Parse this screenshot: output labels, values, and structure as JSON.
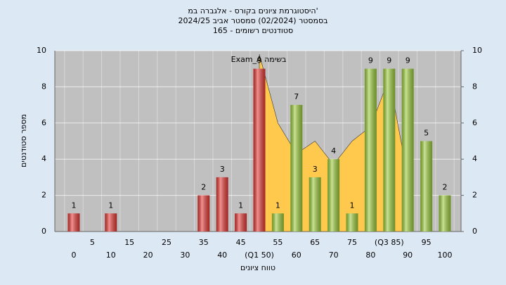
{
  "chart_data": {
    "type": "bar",
    "title": [
      "היסטוגרמת ציונים בקורס - אלגברה במ'",
      "בסמסטר (02/2024) סמסטר אביב 2024/25",
      "סטודנטים רשומים - 165"
    ],
    "x_label": "טווח ציונים",
    "y_label": "מספר סטודנטים",
    "categories": [
      "0",
      "5",
      "10",
      "15",
      "20",
      "25",
      "30",
      "35",
      "40",
      "45",
      "(Q1 50)",
      "55",
      "60",
      "65",
      "70",
      "75",
      "80",
      "(Q3 85)",
      "90",
      "95",
      "100"
    ],
    "values": [
      1,
      null,
      1,
      null,
      null,
      null,
      null,
      2,
      3,
      1,
      9,
      1,
      7,
      3,
      4,
      1,
      9,
      9,
      9,
      5,
      2
    ],
    "colors": [
      "#e53935",
      "#e53935",
      "#e53935",
      "#e53935",
      "#e53935",
      "#e53935",
      "#e53935",
      "#e53935",
      "#e53935",
      "#e53935",
      "#e53935",
      "#9ccc3c",
      "#9ccc3c",
      "#9ccc3c",
      "#9ccc3c",
      "#9ccc3c",
      "#9ccc3c",
      "#9ccc3c",
      "#9ccc3c",
      "#9ccc3c",
      "#9ccc3c"
    ],
    "area": {
      "label": "Exam_A בשימה",
      "color": "#ffc94d",
      "values": [
        null,
        null,
        null,
        null,
        null,
        null,
        null,
        null,
        null,
        null,
        9.8,
        6,
        4.3,
        5,
        3.7,
        5,
        5.8,
        8.5,
        3,
        null,
        null
      ]
    },
    "ylim": [
      0,
      10
    ],
    "yticks": [
      0,
      2,
      4,
      6,
      8,
      10
    ],
    "y2lim": [
      0,
      10
    ],
    "y2ticks": [
      0,
      2,
      4,
      6,
      8,
      10
    ],
    "grid": true
  }
}
